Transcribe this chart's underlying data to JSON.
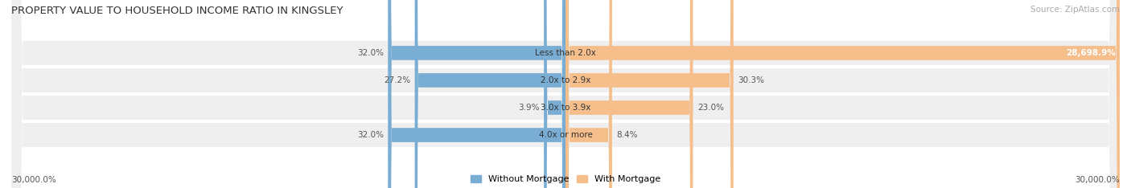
{
  "title": "PROPERTY VALUE TO HOUSEHOLD INCOME RATIO IN KINGSLEY",
  "source": "Source: ZipAtlas.com",
  "categories": [
    "Less than 2.0x",
    "2.0x to 2.9x",
    "3.0x to 3.9x",
    "4.0x or more"
  ],
  "without_mortgage": [
    32.0,
    27.2,
    3.9,
    32.0
  ],
  "with_mortgage": [
    28698.9,
    30.3,
    23.0,
    8.4
  ],
  "without_mortgage_color": "#7aadd4",
  "with_mortgage_color": "#f5be8b",
  "row_bg_color": "#efefef",
  "max_value": 30000.0,
  "xlabel_left": "30,000.0%",
  "xlabel_right": "30,000.0%",
  "legend_without": "Without Mortgage",
  "legend_with": "With Mortgage",
  "background_color": "#ffffff"
}
